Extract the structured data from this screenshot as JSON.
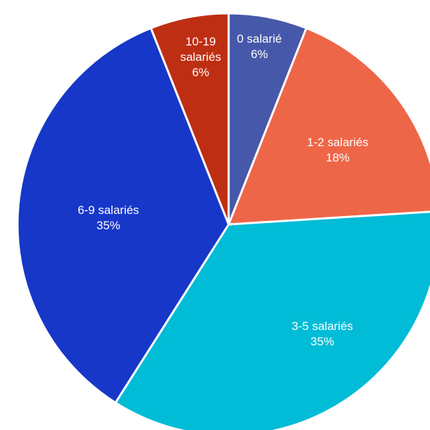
{
  "chart_data": {
    "type": "pie",
    "title": "",
    "legend": "none",
    "slices": [
      {
        "name": "0 salarié",
        "percent_label": "6%",
        "value": 6,
        "color": "#4658A9"
      },
      {
        "name": "1-2 salariés",
        "percent_label": "18%",
        "value": 18,
        "color": "#EE6648"
      },
      {
        "name": "3-5 salariés",
        "percent_label": "35%",
        "value": 35,
        "color": "#00BCD6"
      },
      {
        "name": "6-9 salariés",
        "percent_label": "35%",
        "value": 35,
        "color": "#1737C8"
      },
      {
        "name": "10-19 salariés",
        "percent_label": "6%",
        "value": 6,
        "color": "#BE2E12"
      }
    ]
  }
}
